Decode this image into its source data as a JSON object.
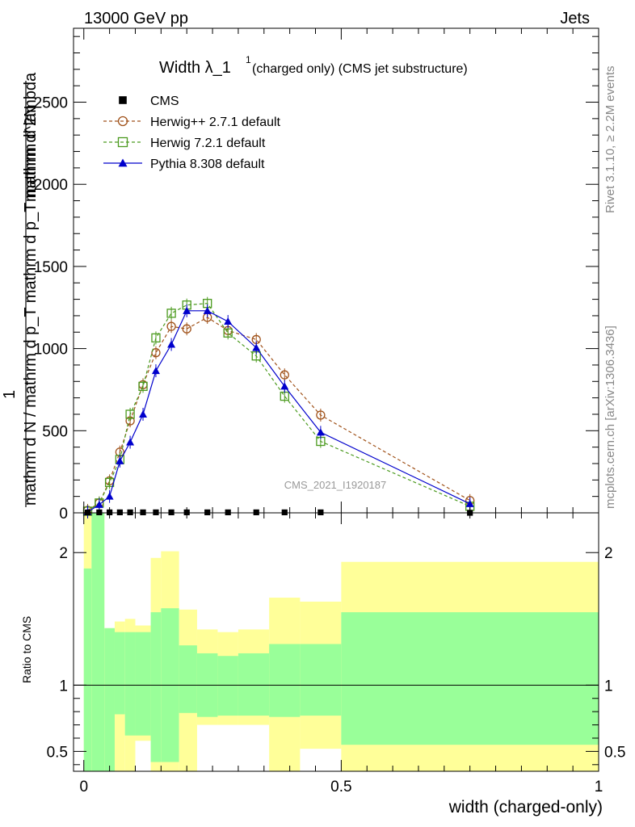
{
  "header": {
    "left": "13000 GeV pp",
    "right": "Jets"
  },
  "side_labels": {
    "rivet": "Rivet 3.1.10, ≥ 2.2M events",
    "mcplots": "mcplots.cern.ch [arXiv:1306.3436]"
  },
  "analysis_id": "CMS_2021_I1920187",
  "chart_data": {
    "type": "line",
    "title_main": "Width λ_1",
    "title_sup": "1",
    "title_sub": "(charged only) (CMS jet substructure)",
    "xlabel": "width (charged-only)",
    "ylabel_top": "1",
    "ylabel_bottom": "mathrm d N / mathrm d p_T mathrm d p_T mathrm d lambda",
    "ylabel_ghost": "mathrm d^2N",
    "ratio_ylabel": "Ratio to CMS",
    "xlim": [
      -0.02,
      1.0
    ],
    "ylim": [
      0,
      2950
    ],
    "ratio_ylim": [
      0.35,
      2.3
    ],
    "x_ticks": [
      0,
      0.5,
      1
    ],
    "x_tick_labels": [
      "0",
      "0.5",
      "1"
    ],
    "y_ticks": [
      0,
      500,
      1000,
      1500,
      2000,
      2500
    ],
    "y_tick_labels": [
      "0",
      "500",
      "1000",
      "1500",
      "2000",
      "2500"
    ],
    "ratio_y_ticks": [
      0.5,
      1,
      2
    ],
    "ratio_y_tick_labels": [
      "0.5",
      "1",
      "2"
    ],
    "legend": [
      {
        "name": "CMS",
        "marker": "square-filled",
        "color": "#000000",
        "dash": "none"
      },
      {
        "name": "Herwig++ 2.7.1 default",
        "marker": "circle-open",
        "color": "#a0521a",
        "dash": "4,3"
      },
      {
        "name": "Herwig 7.2.1 default",
        "marker": "square-open",
        "color": "#4b9a1e",
        "dash": "4,3"
      },
      {
        "name": "Pythia 8.308 default",
        "marker": "triangle-filled",
        "color": "#0000cc",
        "dash": "none"
      }
    ],
    "x": [
      0.0075,
      0.03,
      0.05,
      0.07,
      0.09,
      0.115,
      0.14,
      0.17,
      0.2,
      0.24,
      0.28,
      0.335,
      0.39,
      0.46,
      0.75
    ],
    "series": [
      {
        "name": "CMS",
        "values": [
          2,
          3,
          3,
          3,
          3,
          3,
          3,
          3,
          3,
          3,
          3,
          3,
          3,
          3,
          0
        ]
      },
      {
        "name": "Herwig++ 2.7.1 default",
        "values": [
          15,
          60,
          195,
          370,
          560,
          780,
          975,
          1135,
          1120,
          1190,
          1110,
          1055,
          840,
          595,
          75
        ]
      },
      {
        "name": "Herwig 7.2.1 default",
        "values": [
          10,
          60,
          185,
          325,
          600,
          770,
          1065,
          1215,
          1265,
          1275,
          1095,
          955,
          710,
          435,
          40
        ]
      },
      {
        "name": "Pythia 8.308 default",
        "values": [
          5,
          50,
          100,
          315,
          430,
          600,
          865,
          1025,
          1230,
          1230,
          1165,
          1005,
          770,
          490,
          55
        ]
      }
    ],
    "ratio_band_edges": [
      0.0,
      0.015,
      0.04,
      0.06,
      0.08,
      0.1,
      0.13,
      0.15,
      0.185,
      0.22,
      0.26,
      0.3,
      0.36,
      0.42,
      0.5,
      1.0
    ],
    "ratio_band_inner": [
      [
        0.3,
        1.88
      ],
      [
        0.3,
        2.3
      ],
      [
        0.3,
        1.43
      ],
      [
        0.78,
        1.4
      ],
      [
        0.62,
        1.4
      ],
      [
        0.62,
        1.4
      ],
      [
        0.42,
        1.55
      ],
      [
        0.42,
        1.58
      ],
      [
        0.79,
        1.3
      ],
      [
        0.76,
        1.24
      ],
      [
        0.77,
        1.22
      ],
      [
        0.77,
        1.24
      ],
      [
        0.76,
        1.31
      ],
      [
        0.77,
        1.31
      ],
      [
        0.55,
        1.55
      ]
    ],
    "ratio_band_outer": [
      [
        0.3,
        2.3
      ],
      [
        0.3,
        2.3
      ],
      [
        0.3,
        1.43
      ],
      [
        0.3,
        1.48
      ],
      [
        0.3,
        1.5
      ],
      [
        0.58,
        1.45
      ],
      [
        0.3,
        1.96
      ],
      [
        0.3,
        2.01
      ],
      [
        0.3,
        1.57
      ],
      [
        0.7,
        1.42
      ],
      [
        0.7,
        1.4
      ],
      [
        0.7,
        1.42
      ],
      [
        0.3,
        1.66
      ],
      [
        0.52,
        1.63
      ],
      [
        0.3,
        1.93
      ]
    ]
  }
}
